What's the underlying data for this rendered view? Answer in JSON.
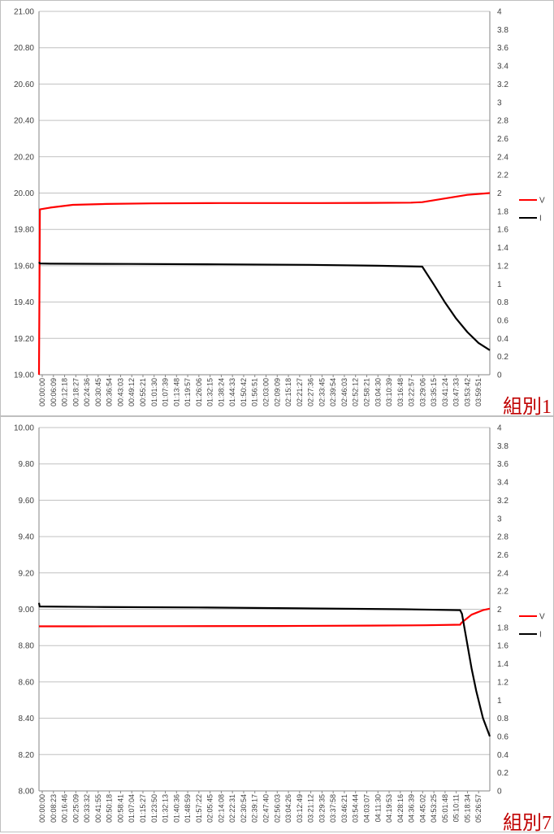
{
  "colors": {
    "v": "#ff0000",
    "i": "#000000",
    "grid": "#c0c0c0",
    "group_label": "#c00000"
  },
  "chart_data": [
    {
      "type": "line",
      "group_label": "組別1",
      "legend": [
        {
          "name": "V",
          "color": "#ff0000"
        },
        {
          "name": "I",
          "color": "#000000"
        }
      ],
      "y_left": {
        "min": 19.0,
        "max": 21.0,
        "step": 0.2,
        "ticks": [
          "19.00",
          "19.20",
          "19.40",
          "19.60",
          "19.80",
          "20.00",
          "20.20",
          "20.40",
          "20.60",
          "20.80",
          "21.00"
        ]
      },
      "y_right": {
        "min": 0,
        "max": 4,
        "step": 0.2,
        "ticks": [
          "0",
          "0.2",
          "0.4",
          "0.6",
          "0.8",
          "1",
          "1.2",
          "1.4",
          "1.6",
          "1.8",
          "2",
          "2.2",
          "2.4",
          "2.6",
          "2.8",
          "3",
          "3.2",
          "3.4",
          "3.6",
          "3.8",
          "4"
        ]
      },
      "x_ticks": [
        "00:00:00",
        "00:06:09",
        "00:12:18",
        "00:18:27",
        "00:24:36",
        "00:30:45",
        "00:36:54",
        "00:43:03",
        "00:49:12",
        "00:55:21",
        "01:01:30",
        "01:07:39",
        "01:13:48",
        "01:19:57",
        "01:26:06",
        "01:32:15",
        "01:38:24",
        "01:44:33",
        "01:50:42",
        "01:56:51",
        "02:03:00",
        "02:09:09",
        "02:15:18",
        "02:21:27",
        "02:27:36",
        "02:33:45",
        "02:39:54",
        "02:46:03",
        "02:52:12",
        "02:58:21",
        "03:04:30",
        "03:10:39",
        "03:16:48",
        "03:22:57",
        "03:29:06",
        "03:35:15",
        "03:41:24",
        "03:47:33",
        "03:53:42",
        "03:59:51"
      ],
      "x_max_seconds": 14760,
      "grid": "horizontal",
      "series": [
        {
          "name": "V",
          "axis": "left",
          "x": [
            "00:00:00",
            "00:00:30",
            "00:06:09",
            "00:18:27",
            "00:36:54",
            "01:01:30",
            "01:38:24",
            "02:33:45",
            "03:00:00",
            "03:22:57",
            "03:29:06",
            "03:41:24",
            "03:53:42",
            "04:06:00"
          ],
          "y": [
            19.0,
            19.91,
            19.92,
            19.935,
            19.94,
            19.943,
            19.945,
            19.945,
            19.946,
            19.947,
            19.95,
            19.97,
            19.99,
            20.0
          ]
        },
        {
          "name": "I",
          "axis": "right",
          "x": [
            "00:00:00",
            "00:00:30",
            "00:06:09",
            "00:49:12",
            "01:38:24",
            "02:27:36",
            "03:04:30",
            "03:29:06",
            "03:35:15",
            "03:41:24",
            "03:47:33",
            "03:53:42",
            "03:59:51",
            "04:06:00"
          ],
          "y": [
            1.24,
            1.225,
            1.222,
            1.22,
            1.215,
            1.21,
            1.2,
            1.19,
            1.0,
            0.8,
            0.62,
            0.47,
            0.35,
            0.27
          ]
        }
      ]
    },
    {
      "type": "line",
      "group_label": "組別7",
      "legend": [
        {
          "name": "V",
          "color": "#ff0000"
        },
        {
          "name": "I",
          "color": "#000000"
        }
      ],
      "y_left": {
        "min": 8.0,
        "max": 10.0,
        "step": 0.2,
        "ticks": [
          "8.00",
          "8.20",
          "8.40",
          "8.60",
          "8.80",
          "9.00",
          "9.20",
          "9.40",
          "9.60",
          "9.80",
          "10.00"
        ]
      },
      "y_right": {
        "min": 0,
        "max": 4,
        "step": 0.2,
        "ticks": [
          "0",
          "0.2",
          "0.4",
          "0.6",
          "0.8",
          "1",
          "1.2",
          "1.4",
          "1.6",
          "1.8",
          "2",
          "2.2",
          "2.4",
          "2.6",
          "2.8",
          "3",
          "3.2",
          "3.4",
          "3.6",
          "3.8",
          "4"
        ]
      },
      "x_ticks": [
        "00:00:00",
        "00:08:23",
        "00:16:46",
        "00:25:09",
        "00:33:32",
        "00:41:55",
        "00:50:18",
        "00:58:41",
        "01:07:04",
        "01:15:27",
        "01:23:50",
        "01:32:13",
        "01:40:36",
        "01:48:59",
        "01:57:22",
        "02:05:45",
        "02:14:08",
        "02:22:31",
        "02:30:54",
        "02:39:17",
        "02:47:40",
        "02:56:03",
        "03:04:26",
        "03:12:49",
        "03:21:12",
        "03:29:35",
        "03:37:58",
        "03:46:21",
        "03:54:44",
        "04:03:07",
        "04:11:30",
        "04:19:53",
        "04:28:16",
        "04:36:39",
        "04:45:02",
        "04:53:25",
        "05:01:48",
        "05:10:11",
        "05:18:34",
        "05:26:57"
      ],
      "x_max_seconds": 19920,
      "grid": "horizontal",
      "series": [
        {
          "name": "V",
          "axis": "left",
          "x": [
            "00:00:00",
            "00:00:30",
            "00:33:32",
            "01:40:36",
            "02:56:03",
            "04:03:07",
            "04:45:02",
            "05:10:11",
            "05:11:00",
            "05:18:34",
            "05:26:57",
            "05:32:00"
          ],
          "y": [
            8.905,
            8.906,
            8.906,
            8.907,
            8.908,
            8.91,
            8.912,
            8.915,
            8.925,
            8.97,
            8.995,
            9.003
          ]
        },
        {
          "name": "I",
          "axis": "right",
          "x": [
            "00:00:00",
            "00:00:30",
            "00:41:55",
            "01:57:22",
            "03:12:49",
            "04:28:16",
            "05:10:11",
            "05:11:30",
            "05:15:00",
            "05:18:34",
            "05:22:00",
            "05:26:57",
            "05:32:00"
          ],
          "y": [
            2.07,
            2.03,
            2.025,
            2.02,
            2.01,
            2.0,
            1.99,
            1.95,
            1.65,
            1.35,
            1.1,
            0.8,
            0.6
          ]
        }
      ]
    }
  ]
}
